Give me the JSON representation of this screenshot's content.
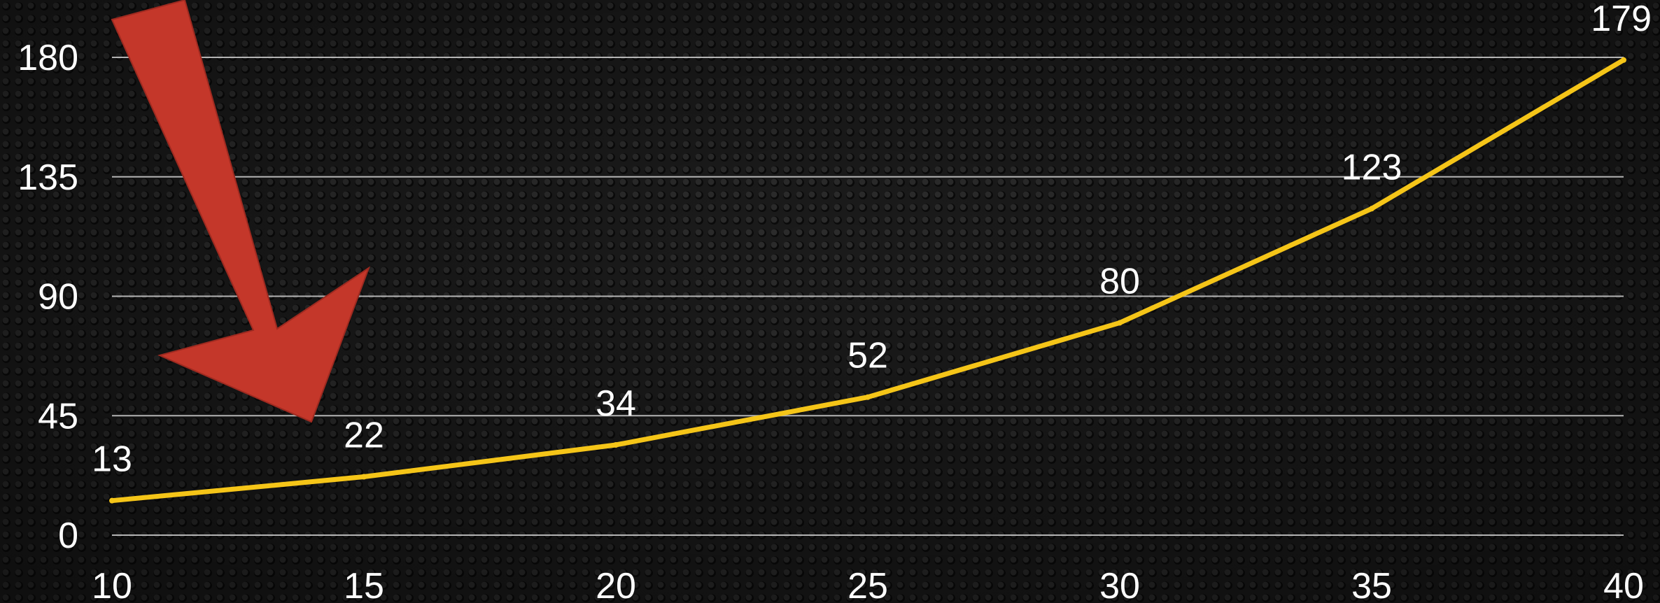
{
  "chart_data": {
    "type": "line",
    "x": [
      10,
      15,
      20,
      25,
      30,
      35,
      40
    ],
    "series": [
      {
        "values": [
          13,
          22,
          34,
          52,
          80,
          123,
          179
        ]
      }
    ],
    "data_labels": [
      "13",
      "22",
      "34",
      "52",
      "80",
      "123",
      "179"
    ],
    "x_ticks": [
      10,
      15,
      20,
      25,
      30,
      35,
      40
    ],
    "x_tick_labels": [
      "10",
      "15",
      "20",
      "25",
      "30",
      "35",
      "40"
    ],
    "y_ticks": [
      0,
      45,
      90,
      135,
      180
    ],
    "y_tick_labels": [
      "0",
      "45",
      "90",
      "135",
      "180"
    ],
    "xlim": [
      10,
      40
    ],
    "ylim": [
      0,
      180
    ],
    "title": "",
    "xlabel": "",
    "ylabel": "",
    "grid": true,
    "legend": "none",
    "annotation": "red arrow pointing down-right at the low end of the curve",
    "colors": {
      "line": "#f5c518",
      "grid": "#d0d0d0",
      "text": "#ffffff",
      "arrow": "#c0392b",
      "background": "#1a1a1a"
    }
  }
}
